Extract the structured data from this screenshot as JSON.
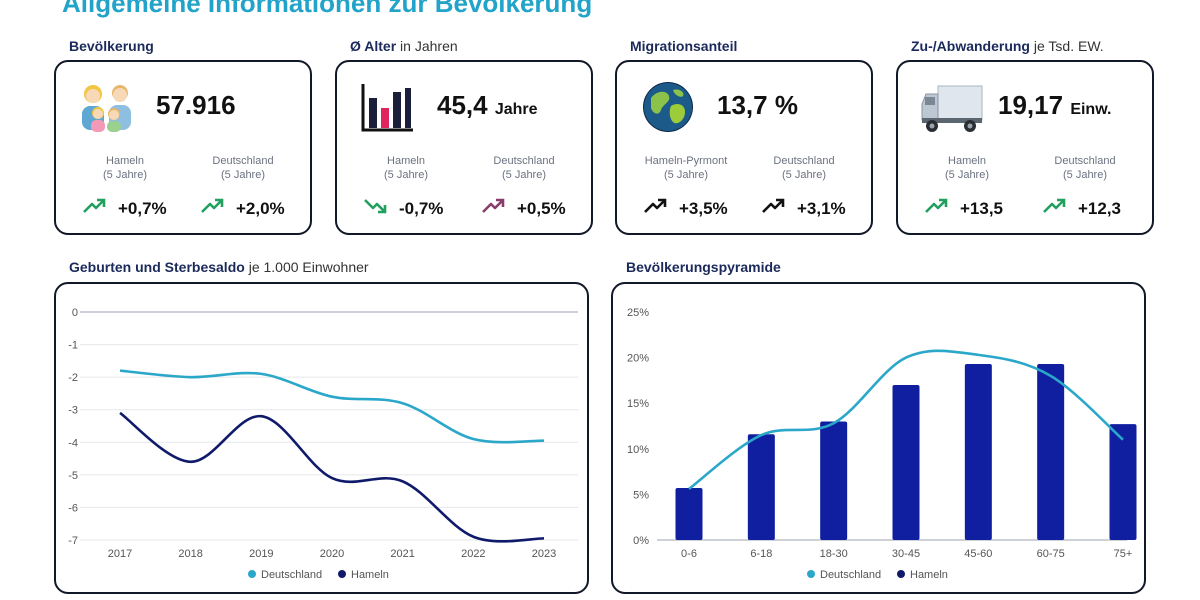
{
  "title": "Allgemeine Informationen zur Bevölkerung",
  "colors": {
    "accent": "#22a3c9",
    "navy": "#1b2a5b",
    "up": "#21a05f",
    "down": "#21a05f",
    "upAlt": "#8a3d6b",
    "dark": "#111111",
    "lineLight": "#2aa7c9",
    "lineDark": "#101a6b",
    "bar": "#0f1fa0"
  },
  "cards": [
    {
      "title_bold": "Bevölkerung",
      "title_light": "",
      "value": "57.916",
      "unit": "",
      "icon": "family-icon",
      "left_label": "Hameln",
      "left_sub": "(5 Jahre)",
      "right_label": "Deutschland",
      "right_sub": "(5 Jahre)",
      "left_trend": "+0,7%",
      "right_trend": "+2,0%",
      "left_dir": "up",
      "right_dir": "up",
      "left_color": "#21a05f",
      "right_color": "#21a05f"
    },
    {
      "title_bold": "Ø Alter",
      "title_light": "in Jahren",
      "value": "45,4",
      "unit": "Jahre",
      "icon": "bar-chart-icon",
      "left_label": "Hameln",
      "left_sub": "(5 Jahre)",
      "right_label": "Deutschland",
      "right_sub": "(5 Jahre)",
      "left_trend": "-0,7%",
      "right_trend": "+0,5%",
      "left_dir": "down",
      "right_dir": "up",
      "left_color": "#21a05f",
      "right_color": "#8a3d6b"
    },
    {
      "title_bold": "Migrationsanteil",
      "title_light": "",
      "value": "13,7 %",
      "unit": "",
      "icon": "globe-icon",
      "left_label": "Hameln-Pyrmont",
      "left_sub": "(5 Jahre)",
      "right_label": "Deutschland",
      "right_sub": "(5 Jahre)",
      "left_trend": "+3,5%",
      "right_trend": "+3,1%",
      "left_dir": "up",
      "right_dir": "up",
      "left_color": "#111111",
      "right_color": "#111111"
    },
    {
      "title_bold": "Zu-/Abwanderung",
      "title_light": "je Tsd. EW.",
      "value": "19,17",
      "unit": "Einw.",
      "icon": "truck-icon",
      "left_label": "Hameln",
      "left_sub": "(5 Jahre)",
      "right_label": "Deutschland",
      "right_sub": "(5 Jahre)",
      "left_trend": "+13,5",
      "right_trend": "+12,3",
      "left_dir": "up",
      "right_dir": "up",
      "left_color": "#21a05f",
      "right_color": "#21a05f"
    }
  ],
  "line_card": {
    "title_bold": "Geburten und Sterbesaldo",
    "title_light": "je 1.000 Einwohner"
  },
  "bar_card": {
    "title_bold": "Bevölkerungspyramide",
    "title_light": ""
  },
  "chart_data": [
    {
      "type": "line",
      "title": "Geburten und Sterbesaldo je 1.000 Einwohner",
      "x": [
        "2017",
        "2018",
        "2019",
        "2020",
        "2021",
        "2022",
        "2023"
      ],
      "yticks": [
        "0",
        "-1",
        "-2",
        "-3",
        "-4",
        "-5",
        "-6",
        "-7"
      ],
      "ylim": [
        -7,
        0
      ],
      "series": [
        {
          "name": "Deutschland",
          "values": [
            -1.8,
            -2.0,
            -1.9,
            -2.6,
            -2.8,
            -3.9,
            -3.95
          ]
        },
        {
          "name": "Hameln",
          "values": [
            -3.1,
            -4.6,
            -3.2,
            -5.1,
            -5.2,
            -6.9,
            -6.95
          ]
        }
      ],
      "legend": [
        "Deutschland",
        "Hameln"
      ],
      "grid": true
    },
    {
      "type": "bar",
      "title": "Bevölkerungspyramide",
      "categories": [
        "0-6",
        "6-18",
        "18-30",
        "30-45",
        "45-60",
        "60-75",
        "75+"
      ],
      "yticks": [
        "25%",
        "20%",
        "15%",
        "10%",
        "5%",
        "0%"
      ],
      "ylim": [
        0,
        25
      ],
      "series": [
        {
          "name": "Hameln",
          "values": [
            5.7,
            11.6,
            13.0,
            17.0,
            19.3,
            19.3,
            12.7
          ]
        },
        {
          "name": "Deutschland",
          "values": [
            5.6,
            11.5,
            12.8,
            20.0,
            20.3,
            18.0,
            11.0
          ]
        }
      ],
      "legend": [
        "Deutschland",
        "Hameln"
      ],
      "grid": false
    }
  ]
}
